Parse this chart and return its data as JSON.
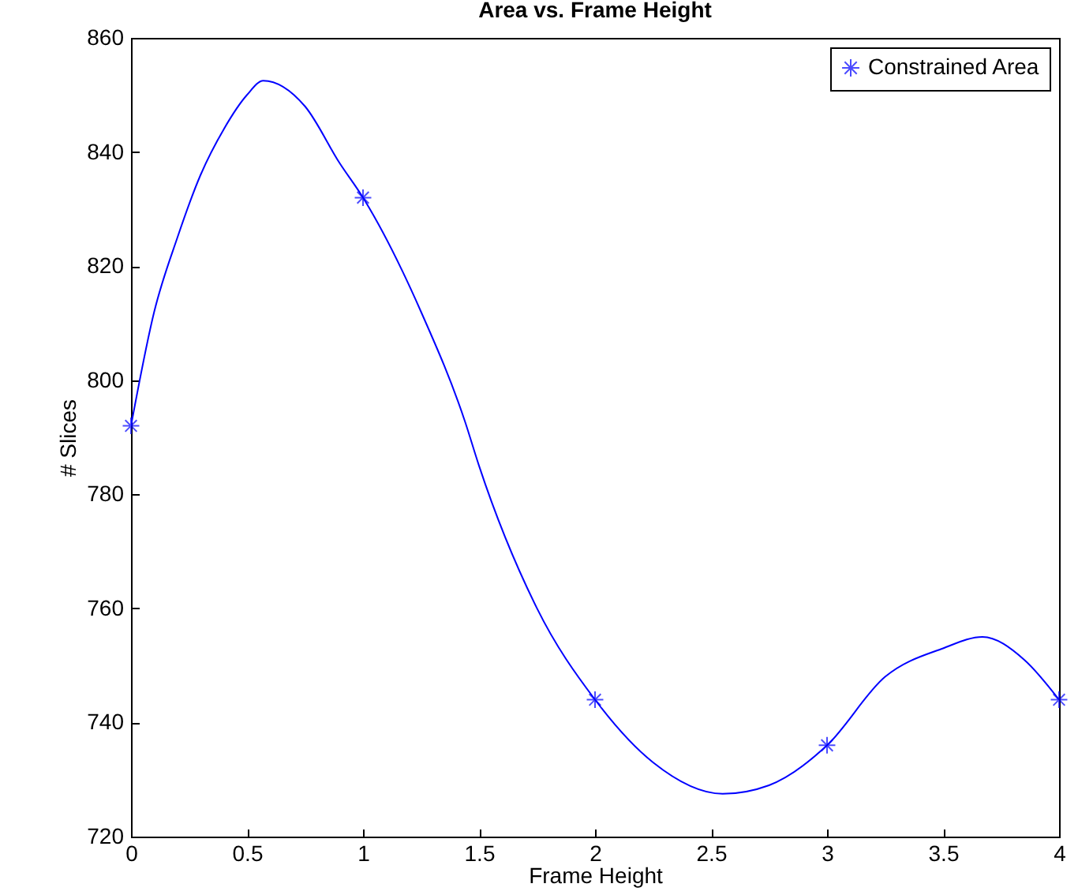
{
  "chart_data": {
    "type": "scatter",
    "title": "Area vs. Frame Height",
    "xlabel": "Frame Height",
    "ylabel": "# Slices",
    "xlim": [
      0,
      4
    ],
    "xticks": [
      0,
      0.5,
      1,
      1.5,
      2,
      2.5,
      3,
      3.5,
      4
    ],
    "ylim": [
      720,
      860
    ],
    "yticks": [
      720,
      740,
      760,
      780,
      800,
      820,
      840,
      860
    ],
    "grid": false,
    "legend": "top right",
    "series": [
      {
        "type": "line",
        "marker": "none",
        "color": "#0000ff",
        "x": [
          0,
          0.1,
          0.2,
          0.3,
          0.4,
          0.5,
          0.57,
          0.75,
          0.9,
          1,
          1.25,
          1.44,
          1.5,
          1.75,
          2,
          2.25,
          2.55,
          2.75,
          3,
          3.25,
          3.5,
          3.67,
          3.85,
          4
        ],
        "values": [
          792,
          812,
          825,
          836,
          844,
          850,
          852.5,
          848,
          838,
          832,
          812,
          792.7,
          785,
          760,
          744,
          733,
          727.5,
          729,
          736,
          748,
          753,
          755,
          751,
          744
        ]
      },
      {
        "name": "Constrained Area",
        "marker": "cross",
        "color": "#0000ff",
        "x": [
          0,
          1,
          2,
          3,
          4
        ],
        "values": [
          792,
          832,
          744,
          736,
          744
        ]
      }
    ]
  }
}
